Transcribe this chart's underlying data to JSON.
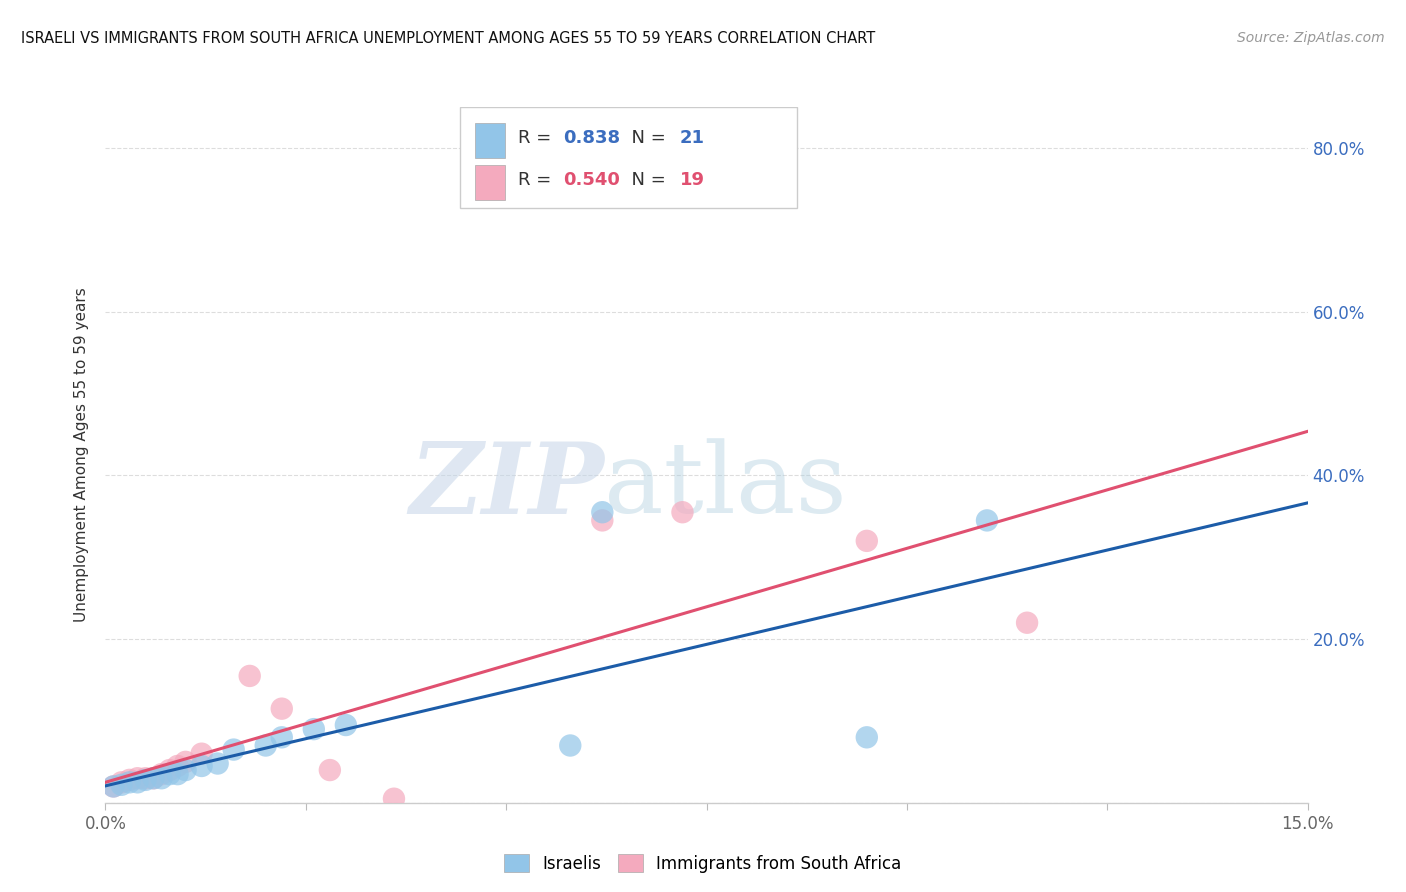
{
  "title": "ISRAELI VS IMMIGRANTS FROM SOUTH AFRICA UNEMPLOYMENT AMONG AGES 55 TO 59 YEARS CORRELATION CHART",
  "source": "Source: ZipAtlas.com",
  "ylabel": "Unemployment Among Ages 55 to 59 years",
  "xlim": [
    0.0,
    0.15
  ],
  "ylim": [
    0.0,
    0.85
  ],
  "xtick_positions": [
    0.0,
    0.025,
    0.05,
    0.075,
    0.1,
    0.125,
    0.15
  ],
  "ytick_positions": [
    0.0,
    0.2,
    0.4,
    0.6,
    0.8
  ],
  "ytick_labels_right": [
    "",
    "20.0%",
    "40.0%",
    "60.0%",
    "80.0%"
  ],
  "israelis_x": [
    0.001,
    0.002,
    0.003,
    0.004,
    0.005,
    0.006,
    0.007,
    0.008,
    0.009,
    0.01,
    0.012,
    0.014,
    0.016,
    0.02,
    0.022,
    0.026,
    0.03,
    0.058,
    0.062,
    0.095,
    0.11
  ],
  "israelis_y": [
    0.02,
    0.022,
    0.025,
    0.025,
    0.028,
    0.03,
    0.03,
    0.035,
    0.035,
    0.04,
    0.045,
    0.048,
    0.065,
    0.07,
    0.08,
    0.09,
    0.095,
    0.07,
    0.355,
    0.08,
    0.345
  ],
  "immigrants_x": [
    0.001,
    0.002,
    0.003,
    0.004,
    0.005,
    0.006,
    0.007,
    0.008,
    0.009,
    0.01,
    0.012,
    0.018,
    0.022,
    0.028,
    0.036,
    0.062,
    0.072,
    0.095,
    0.115
  ],
  "immigrants_y": [
    0.02,
    0.025,
    0.028,
    0.03,
    0.03,
    0.03,
    0.035,
    0.04,
    0.045,
    0.05,
    0.06,
    0.155,
    0.115,
    0.04,
    0.005,
    0.345,
    0.355,
    0.32,
    0.22
  ],
  "R_israelis": 0.838,
  "N_israelis": 21,
  "R_immigrants": 0.54,
  "N_immigrants": 19,
  "color_israelis": "#92C5E8",
  "color_immigrants": "#F4AABE",
  "line_color_israelis": "#1C5CA8",
  "line_color_immigrants": "#E05070",
  "background_color": "#FFFFFF",
  "grid_color": "#DDDDDD",
  "title_color": "#111111",
  "source_color": "#999999",
  "ylabel_color": "#333333",
  "right_tick_color": "#3B6DBF",
  "bottom_tick_color": "#666666"
}
